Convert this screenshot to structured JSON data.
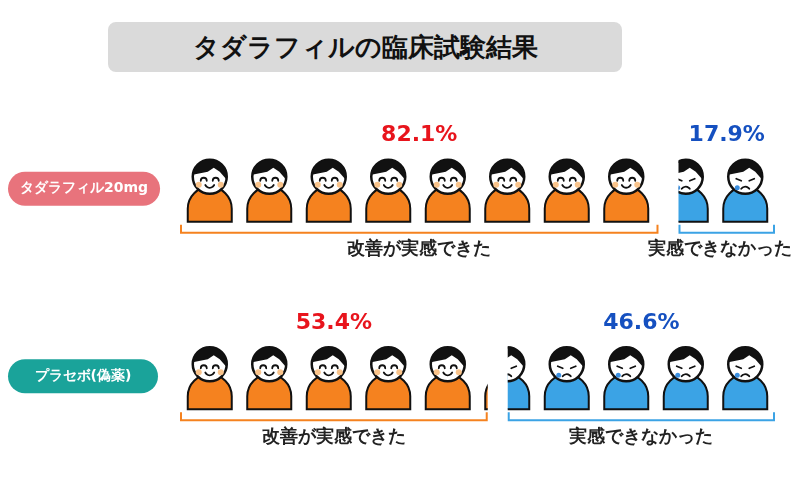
{
  "chart_data": {
    "type": "bar",
    "title": "タダラフィルの臨床試験結果",
    "orientation": "horizontal",
    "stacked": true,
    "categories": [
      "タダラフィル20mg",
      "プラセボ(偽薬)"
    ],
    "series": [
      {
        "name": "改善が実感できた",
        "color": "#f5821f",
        "values": [
          82.1,
          53.4
        ],
        "value_labels": [
          "82.1%",
          "53.4%"
        ]
      },
      {
        "name": "実感できなかった",
        "color": "#3ba3e5",
        "values": [
          17.9,
          46.6
        ],
        "value_labels": [
          "17.9%",
          "46.6%"
        ]
      }
    ],
    "xlim": [
      0,
      100
    ],
    "tick_labels": false,
    "grid": false,
    "data_labels": true
  }
}
